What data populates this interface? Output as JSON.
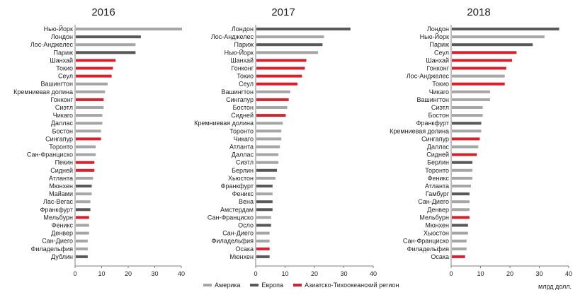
{
  "colors": {
    "america": "#a6a6a6",
    "europe": "#595959",
    "asia": "#d6222e"
  },
  "legend": [
    {
      "key": "america",
      "label": "Америка"
    },
    {
      "key": "europe",
      "label": "Европа"
    },
    {
      "key": "asia",
      "label": "Азиатско-Тихоокеанский регион"
    }
  ],
  "unit": "млрд долл.",
  "chart_data": [
    {
      "type": "bar",
      "title": "2016",
      "xlim": [
        0,
        40
      ],
      "ticks": [
        0,
        10,
        20,
        30,
        40
      ],
      "categories": [
        "Нью-Йорк",
        "Лондон",
        "Лос-Анджелес",
        "Париж",
        "Шанхай",
        "Токио",
        "Сеул",
        "Вашингтон",
        "Кремниевая долина",
        "Гонконг",
        "Сиэтл",
        "Чикаго",
        "Даллас",
        "Бостон",
        "Сингапур",
        "Торонто",
        "Сан-Франциско",
        "Пекин",
        "Сидней",
        "Атланта",
        "Мюнхен",
        "Майами",
        "Лас-Вегас",
        "Франкфурт",
        "Мельбурн",
        "Феникс",
        "Денвер",
        "Сан-Диего",
        "Филадельфия",
        "Дублин"
      ],
      "values": [
        40,
        24.5,
        22.5,
        22.5,
        15,
        14,
        13.5,
        12,
        11,
        10.5,
        10.5,
        10,
        10,
        9.5,
        9.5,
        7.5,
        7.5,
        7,
        7,
        6.5,
        6,
        6,
        5.5,
        5.5,
        5,
        5,
        5,
        4.5,
        4.5,
        4.5
      ],
      "regions": [
        "america",
        "europe",
        "america",
        "europe",
        "asia",
        "asia",
        "asia",
        "america",
        "america",
        "asia",
        "america",
        "america",
        "america",
        "america",
        "asia",
        "america",
        "america",
        "asia",
        "asia",
        "america",
        "europe",
        "america",
        "america",
        "europe",
        "asia",
        "america",
        "america",
        "america",
        "america",
        "europe"
      ]
    },
    {
      "type": "bar",
      "title": "2017",
      "xlim": [
        0,
        40
      ],
      "ticks": [
        0,
        10,
        20,
        30,
        40
      ],
      "categories": [
        "Лондон",
        "Лос-Анджелес",
        "Париж",
        "Нью-Йорк",
        "Шанхай",
        "Гонконг",
        "Токио",
        "Сеул",
        "Вашингтон",
        "Сингапур",
        "Бостон",
        "Сидней",
        "Кремниевая долина",
        "Торонто",
        "Чикаго",
        "Атланта",
        "Даллас",
        "Сиэтл",
        "Берлин",
        "Хьюстон",
        "Франкфурт",
        "Феникс",
        "Вена",
        "Амстердам",
        "Сан-Франциско",
        "Осло",
        "Сан-Диего",
        "Филадельфия",
        "Осака",
        "Мюнхен"
      ],
      "values": [
        32,
        23,
        22.5,
        21,
        17,
        16.5,
        15.5,
        14,
        11.5,
        11,
        10.5,
        10,
        9,
        8.5,
        8.5,
        8,
        7.5,
        7.5,
        7,
        6.5,
        5.5,
        5.5,
        5.5,
        5.5,
        5,
        5,
        4.5,
        4.5,
        4.5,
        4.5
      ],
      "regions": [
        "europe",
        "america",
        "europe",
        "america",
        "asia",
        "asia",
        "asia",
        "asia",
        "america",
        "asia",
        "america",
        "asia",
        "america",
        "america",
        "america",
        "america",
        "america",
        "america",
        "europe",
        "america",
        "europe",
        "america",
        "europe",
        "europe",
        "america",
        "europe",
        "america",
        "america",
        "asia",
        "europe"
      ]
    },
    {
      "type": "bar",
      "title": "2018",
      "xlim": [
        0,
        40
      ],
      "ticks": [
        0,
        10,
        20,
        30,
        40
      ],
      "categories": [
        "Лондон",
        "Нью-Йорк",
        "Париж",
        "Сеул",
        "Шанхай",
        "Гонконг",
        "Лос-Анджелес",
        "Токио",
        "Чикаго",
        "Вашингтон",
        "Сиэтл",
        "Бостон",
        "Франкфурт",
        "Кремниевая долина",
        "Сингапур",
        "Даллас",
        "Сидней",
        "Берлин",
        "Торонто",
        "Феникс",
        "Атланта",
        "Гамбург",
        "Сан-Диего",
        "Денвер",
        "Мельбурн",
        "Мюнхен",
        "Хьюстон",
        "Сан-Франциско",
        "Филадельфия",
        "Осака"
      ],
      "values": [
        36.5,
        31.5,
        27.5,
        22,
        20.5,
        18.5,
        18,
        18,
        13,
        13,
        10.5,
        10.5,
        10,
        10,
        9.5,
        9,
        8.5,
        7,
        7,
        7,
        6.5,
        6,
        6,
        6,
        6,
        5.5,
        5.5,
        5,
        5,
        4.5
      ],
      "regions": [
        "europe",
        "america",
        "europe",
        "asia",
        "asia",
        "asia",
        "america",
        "asia",
        "america",
        "america",
        "america",
        "america",
        "europe",
        "america",
        "asia",
        "america",
        "asia",
        "europe",
        "america",
        "america",
        "america",
        "europe",
        "america",
        "america",
        "asia",
        "europe",
        "america",
        "america",
        "america",
        "asia"
      ]
    }
  ]
}
